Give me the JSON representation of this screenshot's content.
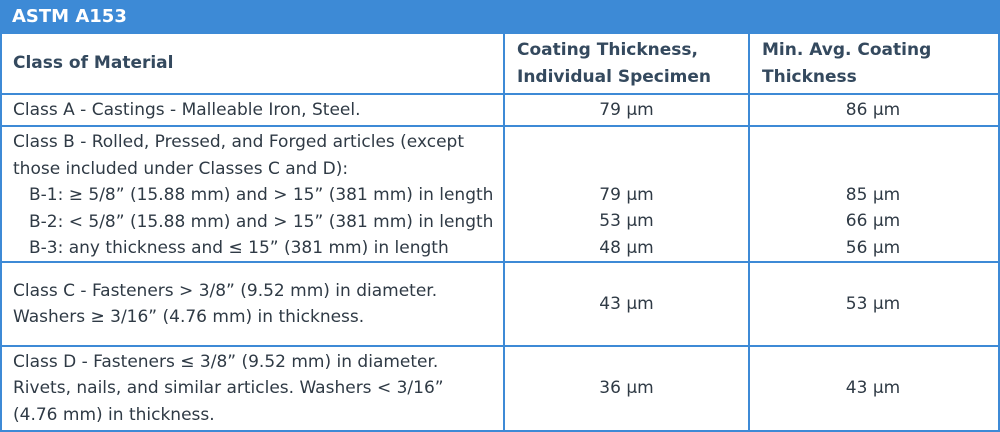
{
  "title": "ASTM A153",
  "header": [
    [
      "Class of Material"
    ],
    [
      "Coating Thickness,",
      "Individual Specimen"
    ],
    [
      "Min. Avg. Coating",
      "Thickness"
    ]
  ],
  "rows": [
    {
      "label": [
        "Class A - Castings - Malleable Iron, Steel."
      ],
      "values": [
        "79 µm",
        "86 µm"
      ]
    },
    {
      "label": [
        "Class B - Rolled, Pressed, and Forged articles (except",
        "those included under Classes C and D):"
      ],
      "subrows": [
        [
          "B-1:  ≥ 5/8” (15.88 mm) and > 15” (381 mm) in length",
          "79 µm",
          "85 µm"
        ],
        [
          "B-2:  < 5/8” (15.88 mm) and > 15” (381 mm) in length",
          "53 µm",
          "66 µm"
        ],
        [
          "B-3:  any thickness and ≤ 15” (381 mm) in length",
          "48 µm",
          "56 µm"
        ]
      ]
    },
    {
      "label": [
        "Class C - Fasteners > 3/8” (9.52 mm) in diameter.",
        "Washers ≥ 3/16” (4.76 mm) in thickness."
      ],
      "values": [
        "43 µm",
        "53 µm"
      ]
    },
    {
      "label": [
        "Class D - Fasteners ≤ 3/8” (9.52 mm) in diameter.",
        "Rivets, nails, and similar articles. Washers < 3/16”",
        "(4.76 mm) in thickness."
      ],
      "values": [
        "36 µm",
        "43 µm"
      ]
    }
  ]
}
